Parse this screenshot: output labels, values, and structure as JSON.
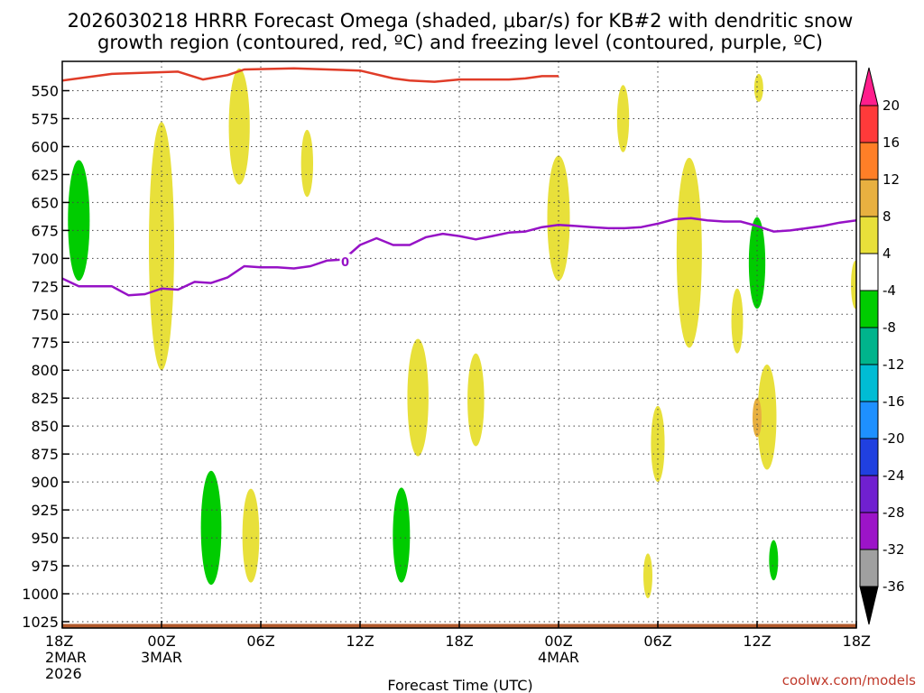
{
  "title": {
    "line1": "2026030218 HRRR Forecast Omega (shaded, μbar/s) for KB#2 with dendritic snow",
    "line2": "growth region (contoured, red, ºC) and freezing level (contoured, purple, ºC)"
  },
  "credit": "coolwx.com/models",
  "chart_data": {
    "type": "heatmap",
    "title": "2026030218 HRRR Forecast Omega (shaded, μbar/s) for KB#2 with dendritic snow growth region (contoured, red, ºC) and freezing level (contoured, purple, ºC)",
    "xlabel": "Forecast Time (UTC)",
    "ylabel": "",
    "x_unit": "forecast hour",
    "xlim": [
      0,
      48
    ],
    "ylim_hpa": [
      1035,
      530
    ],
    "x_ticks": [
      {
        "hour": 0,
        "label": "18Z",
        "date": "2MAR",
        "year": "2026"
      },
      {
        "hour": 6,
        "label": "00Z",
        "date": "3MAR"
      },
      {
        "hour": 12,
        "label": "06Z"
      },
      {
        "hour": 18,
        "label": "12Z"
      },
      {
        "hour": 24,
        "label": "18Z"
      },
      {
        "hour": 30,
        "label": "00Z",
        "date": "4MAR"
      },
      {
        "hour": 36,
        "label": "06Z"
      },
      {
        "hour": 42,
        "label": "12Z"
      },
      {
        "hour": 48,
        "label": "18Z"
      }
    ],
    "y_ticks": [
      "550",
      "575",
      "600",
      "625",
      "650",
      "675",
      "700",
      "725",
      "750",
      "775",
      "800",
      "825",
      "850",
      "875",
      "900",
      "925",
      "950",
      "975",
      "1000",
      "1025"
    ],
    "grid": true,
    "colorbar": {
      "labels": [
        "20",
        "16",
        "12",
        "8",
        "4",
        "-4",
        "-8",
        "-12",
        "-16",
        "-20",
        "-24",
        "-28",
        "-32",
        "-36"
      ],
      "colors": [
        "#ff1e8c",
        "#ff3a3a",
        "#ff7f27",
        "#e8b040",
        "#e8e03a",
        "#ffffff",
        "#00cc00",
        "#00b48c",
        "#00bcd4",
        "#1e90ff",
        "#2040e0",
        "#7020d0",
        "#9c14c8",
        "#a0a0a0",
        "#000000"
      ]
    },
    "omega_regions": [
      {
        "hour": 1.0,
        "top": 612,
        "bottom": 720,
        "color": "#00cc00"
      },
      {
        "hour": 6.0,
        "top": 578,
        "bottom": 800,
        "color": "#e8e03a"
      },
      {
        "hour": 10.7,
        "top": 530,
        "bottom": 634,
        "color": "#e8e03a"
      },
      {
        "hour": 14.8,
        "top": 585,
        "bottom": 645,
        "color": "#e8e03a"
      },
      {
        "hour": 9.0,
        "top": 890,
        "bottom": 992,
        "color": "#00cc00"
      },
      {
        "hour": 11.4,
        "top": 906,
        "bottom": 990,
        "color": "#e8e03a"
      },
      {
        "hour": 21.5,
        "top": 772,
        "bottom": 877,
        "color": "#e8e03a"
      },
      {
        "hour": 25.0,
        "top": 785,
        "bottom": 868,
        "color": "#e8e03a"
      },
      {
        "hour": 20.5,
        "top": 905,
        "bottom": 990,
        "color": "#00cc00"
      },
      {
        "hour": 30.0,
        "top": 608,
        "bottom": 720,
        "color": "#e8e03a"
      },
      {
        "hour": 33.9,
        "top": 545,
        "bottom": 605,
        "color": "#e8e03a"
      },
      {
        "hour": 37.9,
        "top": 610,
        "bottom": 780,
        "color": "#e8e03a"
      },
      {
        "hour": 36.0,
        "top": 832,
        "bottom": 900,
        "color": "#e8e03a"
      },
      {
        "hour": 35.4,
        "top": 964,
        "bottom": 1004,
        "color": "#e8e03a"
      },
      {
        "hour": 40.8,
        "top": 727,
        "bottom": 785,
        "color": "#e8e03a"
      },
      {
        "hour": 42.1,
        "top": 535,
        "bottom": 560,
        "color": "#e8e03a"
      },
      {
        "hour": 42.0,
        "top": 663,
        "bottom": 745,
        "color": "#00cc00"
      },
      {
        "hour": 42.6,
        "top": 795,
        "bottom": 889,
        "color": "#e8e03a"
      },
      {
        "hour": 42.0,
        "top": 825,
        "bottom": 860,
        "color": "#e8b040"
      },
      {
        "hour": 43.0,
        "top": 952,
        "bottom": 988,
        "color": "#00cc00"
      },
      {
        "hour": 47.95,
        "top": 702,
        "bottom": 745,
        "color": "#e8e03a"
      }
    ],
    "series": [
      {
        "color": "#e03c28",
        "points": [
          [
            0,
            541
          ],
          [
            3,
            535
          ],
          [
            7,
            533
          ],
          [
            8.5,
            540
          ],
          [
            10,
            536
          ],
          [
            11,
            531
          ],
          [
            14,
            530
          ],
          [
            18,
            532
          ],
          [
            20,
            539
          ],
          [
            21,
            541
          ],
          [
            22.5,
            542
          ],
          [
            24,
            540
          ],
          [
            27,
            540
          ],
          [
            28,
            539
          ],
          [
            29,
            537
          ],
          [
            30,
            537
          ]
        ]
      },
      {
        "color": "#9612c6",
        "points": [
          [
            0,
            718
          ],
          [
            1,
            725
          ],
          [
            3,
            725
          ],
          [
            4,
            733
          ],
          [
            5,
            732
          ],
          [
            6,
            727
          ],
          [
            7,
            728
          ],
          [
            8,
            721
          ],
          [
            9,
            722
          ],
          [
            10,
            717
          ],
          [
            11,
            707
          ],
          [
            12,
            708
          ],
          [
            13,
            708
          ],
          [
            14,
            709
          ],
          [
            15,
            707
          ],
          [
            16,
            702
          ],
          [
            17,
            701
          ],
          [
            18,
            688
          ],
          [
            19,
            682
          ],
          [
            20,
            688
          ],
          [
            21,
            688
          ],
          [
            22,
            681
          ],
          [
            23,
            678
          ],
          [
            24,
            680
          ],
          [
            25,
            683
          ],
          [
            26,
            680
          ],
          [
            27,
            677
          ],
          [
            28,
            676
          ],
          [
            29,
            672
          ],
          [
            30,
            670
          ],
          [
            31,
            671
          ],
          [
            32,
            672
          ],
          [
            33,
            673
          ],
          [
            34,
            673
          ],
          [
            35,
            672
          ],
          [
            36,
            669
          ],
          [
            37,
            665
          ],
          [
            38,
            664
          ],
          [
            39,
            666
          ],
          [
            40,
            667
          ],
          [
            41,
            667
          ],
          [
            42,
            671
          ],
          [
            43,
            676
          ],
          [
            44,
            675
          ],
          [
            45,
            673
          ],
          [
            46,
            671
          ],
          [
            47,
            668
          ],
          [
            48,
            666
          ]
        ]
      }
    ],
    "contour_labels": [
      {
        "hour": 17.1,
        "hpa": 703,
        "text": "0",
        "color": "#9612c6"
      }
    ],
    "terrain": {
      "color": "#b25a2c",
      "surface_hpa": 1027
    }
  }
}
